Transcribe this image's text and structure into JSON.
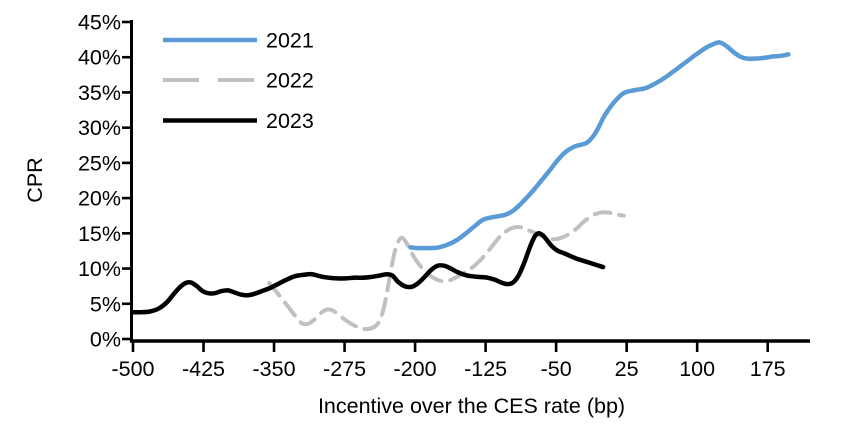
{
  "chart_data": {
    "type": "line",
    "title": "",
    "xlabel": "Incentive over the CES rate (bp)",
    "ylabel": "CPR",
    "x_ticks": [
      -500,
      -425,
      -350,
      -275,
      -200,
      -125,
      -50,
      25,
      100,
      175
    ],
    "y_ticks": [
      0,
      5,
      10,
      15,
      20,
      25,
      30,
      35,
      40,
      45
    ],
    "y_tick_suffix": "%",
    "xlim": [
      -500,
      220
    ],
    "ylim": [
      0,
      45
    ],
    "grid": false,
    "legend_position": "top-left",
    "axis_color": "#000000",
    "series": [
      {
        "name": "2021",
        "color": "#5B9BD5",
        "style": "solid",
        "points": [
          [
            -205,
            13.0
          ],
          [
            -195,
            12.9
          ],
          [
            -185,
            12.9
          ],
          [
            -175,
            13.0
          ],
          [
            -165,
            13.4
          ],
          [
            -155,
            14.1
          ],
          [
            -145,
            15.1
          ],
          [
            -136,
            16.1
          ],
          [
            -128,
            16.9
          ],
          [
            -121,
            17.2
          ],
          [
            -113,
            17.4
          ],
          [
            -105,
            17.6
          ],
          [
            -97,
            18.1
          ],
          [
            -89,
            19.0
          ],
          [
            -81,
            20.1
          ],
          [
            -73,
            21.3
          ],
          [
            -65,
            22.6
          ],
          [
            -57,
            23.9
          ],
          [
            -49,
            25.3
          ],
          [
            -42,
            26.3
          ],
          [
            -35,
            27.0
          ],
          [
            -29,
            27.4
          ],
          [
            -23,
            27.6
          ],
          [
            -17,
            27.9
          ],
          [
            -11,
            28.7
          ],
          [
            -5,
            30.0
          ],
          [
            1,
            31.6
          ],
          [
            8,
            33.0
          ],
          [
            15,
            34.1
          ],
          [
            22,
            34.9
          ],
          [
            29,
            35.2
          ],
          [
            37,
            35.4
          ],
          [
            45,
            35.6
          ],
          [
            53,
            36.1
          ],
          [
            61,
            36.7
          ],
          [
            70,
            37.5
          ],
          [
            80,
            38.5
          ],
          [
            90,
            39.5
          ],
          [
            100,
            40.5
          ],
          [
            110,
            41.4
          ],
          [
            118,
            41.9
          ],
          [
            124,
            42.1
          ],
          [
            131,
            41.6
          ],
          [
            139,
            40.7
          ],
          [
            147,
            40.0
          ],
          [
            154,
            39.8
          ],
          [
            162,
            39.8
          ],
          [
            171,
            39.9
          ],
          [
            180,
            40.1
          ],
          [
            189,
            40.2
          ],
          [
            197,
            40.4
          ]
        ]
      },
      {
        "name": "2022",
        "color": "#C0C0C0",
        "style": "dashed",
        "points": [
          [
            -355,
            7.9
          ],
          [
            -348,
            6.8
          ],
          [
            -341,
            5.6
          ],
          [
            -334,
            4.4
          ],
          [
            -327,
            3.2
          ],
          [
            -320,
            2.2
          ],
          [
            -313,
            2.2
          ],
          [
            -306,
            2.9
          ],
          [
            -299,
            3.8
          ],
          [
            -293,
            4.2
          ],
          [
            -287,
            4.0
          ],
          [
            -280,
            3.3
          ],
          [
            -273,
            2.6
          ],
          [
            -266,
            2.0
          ],
          [
            -259,
            1.6
          ],
          [
            -252,
            1.4
          ],
          [
            -245,
            1.6
          ],
          [
            -239,
            2.3
          ],
          [
            -234,
            4.0
          ],
          [
            -230,
            6.5
          ],
          [
            -226,
            9.5
          ],
          [
            -222,
            12.2
          ],
          [
            -218,
            13.8
          ],
          [
            -214,
            14.4
          ],
          [
            -209,
            13.6
          ],
          [
            -204,
            12.3
          ],
          [
            -198,
            11.0
          ],
          [
            -192,
            10.0
          ],
          [
            -185,
            9.1
          ],
          [
            -178,
            8.5
          ],
          [
            -171,
            8.2
          ],
          [
            -164,
            8.3
          ],
          [
            -157,
            8.7
          ],
          [
            -150,
            9.2
          ],
          [
            -143,
            9.8
          ],
          [
            -136,
            10.5
          ],
          [
            -129,
            11.4
          ],
          [
            -122,
            12.5
          ],
          [
            -115,
            13.7
          ],
          [
            -108,
            14.8
          ],
          [
            -102,
            15.4
          ],
          [
            -96,
            15.8
          ],
          [
            -90,
            15.9
          ],
          [
            -84,
            15.7
          ],
          [
            -77,
            15.3
          ],
          [
            -70,
            14.9
          ],
          [
            -63,
            14.5
          ],
          [
            -56,
            14.2
          ],
          [
            -49,
            14.2
          ],
          [
            -42,
            14.5
          ],
          [
            -35,
            15.0
          ],
          [
            -28,
            15.7
          ],
          [
            -21,
            16.6
          ],
          [
            -14,
            17.3
          ],
          [
            -7,
            17.8
          ],
          [
            0,
            18.0
          ],
          [
            7,
            17.9
          ],
          [
            14,
            17.7
          ],
          [
            22,
            17.5
          ]
        ]
      },
      {
        "name": "2023",
        "color": "#000000",
        "style": "solid",
        "points": [
          [
            -500,
            3.8
          ],
          [
            -491,
            3.8
          ],
          [
            -482,
            3.9
          ],
          [
            -473,
            4.3
          ],
          [
            -464,
            5.2
          ],
          [
            -456,
            6.5
          ],
          [
            -449,
            7.5
          ],
          [
            -443,
            8.0
          ],
          [
            -438,
            8.0
          ],
          [
            -432,
            7.5
          ],
          [
            -426,
            6.8
          ],
          [
            -420,
            6.5
          ],
          [
            -413,
            6.5
          ],
          [
            -406,
            6.8
          ],
          [
            -399,
            6.9
          ],
          [
            -392,
            6.6
          ],
          [
            -385,
            6.3
          ],
          [
            -378,
            6.2
          ],
          [
            -371,
            6.4
          ],
          [
            -363,
            6.8
          ],
          [
            -355,
            7.2
          ],
          [
            -346,
            7.8
          ],
          [
            -337,
            8.4
          ],
          [
            -328,
            8.9
          ],
          [
            -319,
            9.1
          ],
          [
            -310,
            9.2
          ],
          [
            -301,
            8.9
          ],
          [
            -292,
            8.7
          ],
          [
            -283,
            8.6
          ],
          [
            -274,
            8.6
          ],
          [
            -265,
            8.7
          ],
          [
            -256,
            8.7
          ],
          [
            -247,
            8.8
          ],
          [
            -238,
            9.0
          ],
          [
            -230,
            9.2
          ],
          [
            -224,
            9.0
          ],
          [
            -218,
            8.1
          ],
          [
            -211,
            7.5
          ],
          [
            -204,
            7.4
          ],
          [
            -197,
            7.9
          ],
          [
            -190,
            8.8
          ],
          [
            -183,
            9.8
          ],
          [
            -176,
            10.4
          ],
          [
            -169,
            10.4
          ],
          [
            -162,
            10.0
          ],
          [
            -155,
            9.5
          ],
          [
            -147,
            9.1
          ],
          [
            -139,
            8.9
          ],
          [
            -131,
            8.8
          ],
          [
            -123,
            8.7
          ],
          [
            -115,
            8.4
          ],
          [
            -108,
            8.0
          ],
          [
            -102,
            7.8
          ],
          [
            -96,
            8.0
          ],
          [
            -90,
            9.0
          ],
          [
            -84,
            10.8
          ],
          [
            -78,
            13.0
          ],
          [
            -73,
            14.5
          ],
          [
            -69,
            15.0
          ],
          [
            -64,
            14.7
          ],
          [
            -59,
            13.9
          ],
          [
            -54,
            13.1
          ],
          [
            -48,
            12.5
          ],
          [
            -42,
            12.2
          ],
          [
            -35,
            11.8
          ],
          [
            -28,
            11.4
          ],
          [
            -21,
            11.1
          ],
          [
            -14,
            10.8
          ],
          [
            -7,
            10.5
          ],
          [
            0,
            10.2
          ]
        ]
      }
    ]
  }
}
